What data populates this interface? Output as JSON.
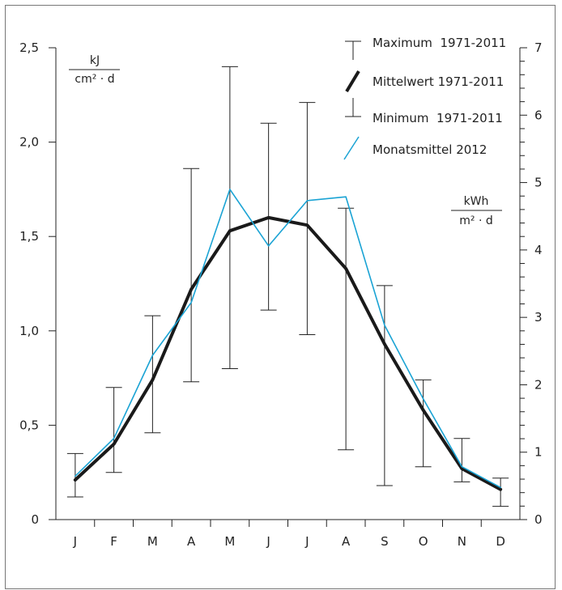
{
  "chart_data": {
    "type": "line",
    "categories": [
      "J",
      "F",
      "M",
      "A",
      "M",
      "J",
      "J",
      "A",
      "S",
      "O",
      "N",
      "D"
    ],
    "y_left": {
      "range": [
        0,
        2.5
      ],
      "ticks": [
        0,
        0.5,
        1.0,
        1.5,
        2.0,
        2.5
      ],
      "tick_labels": [
        "0",
        "0,5",
        "1,0",
        "1,5",
        "2,0",
        "2,5"
      ],
      "unit_numerator": "kJ",
      "unit_denominator": "cm² · d"
    },
    "y_right": {
      "range": [
        0,
        7
      ],
      "ticks": [
        0,
        1,
        2,
        3,
        4,
        5,
        6,
        7
      ],
      "tick_labels": [
        "0",
        "1",
        "2",
        "3",
        "4",
        "5",
        "6",
        "7"
      ],
      "unit_numerator": "kWh",
      "unit_denominator": "m² · d"
    },
    "series": [
      {
        "name": "Maximum 1971-2011",
        "values": [
          0.35,
          0.7,
          1.08,
          1.86,
          2.4,
          2.1,
          2.21,
          1.65,
          1.24,
          0.74,
          0.43,
          0.22
        ]
      },
      {
        "name": "Mittelwert 1971-2011",
        "values": [
          0.21,
          0.4,
          0.74,
          1.22,
          1.53,
          1.6,
          1.56,
          1.33,
          0.93,
          0.58,
          0.27,
          0.16
        ],
        "color": "#1a1a1a"
      },
      {
        "name": "Minimum 1971-2011",
        "values": [
          0.12,
          0.25,
          0.46,
          0.73,
          0.8,
          1.11,
          0.98,
          0.37,
          0.18,
          0.28,
          0.2,
          0.07
        ]
      },
      {
        "name": "Monatsmittel 2012",
        "values": [
          0.23,
          0.43,
          0.87,
          1.15,
          1.75,
          1.45,
          1.69,
          1.71,
          1.03,
          0.64,
          0.28,
          0.17
        ],
        "color": "#1aa3d4"
      }
    ],
    "legend": [
      {
        "label": "Maximum  1971-2011",
        "symbol": "bar-top"
      },
      {
        "label": "Mittelwert 1971-2011",
        "symbol": "thick-line"
      },
      {
        "label": "Minimum  1971-2011",
        "symbol": "bar-bottom"
      },
      {
        "label": "Monatsmittel 2012",
        "symbol": "thin-line"
      }
    ],
    "legend_position": "top-right",
    "grid": false
  }
}
